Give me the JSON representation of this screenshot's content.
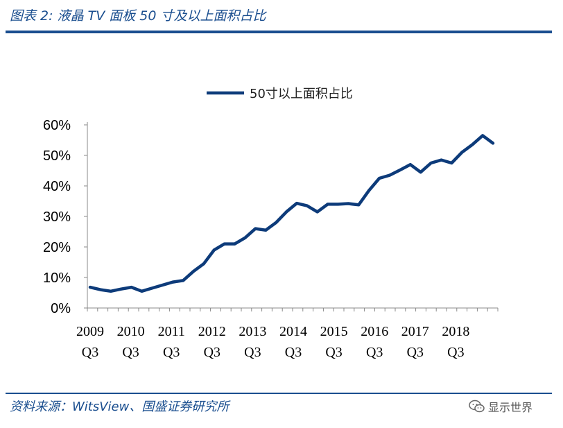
{
  "header": {
    "title": "图表 2: 液晶 TV 面板 50 寸及以上面积占比"
  },
  "footer": {
    "source": "资料来源：WitsView、国盛证券研究所"
  },
  "watermark": {
    "text": "显示世界",
    "icon": "wechat-icon"
  },
  "colors": {
    "brand": "#1a4e8f",
    "series": "#0d3b7a"
  },
  "chart_data": {
    "type": "line",
    "title": "",
    "xlabel": "",
    "ylabel": "",
    "ylim": [
      0,
      60
    ],
    "yticks": [
      "0%",
      "10%",
      "20%",
      "30%",
      "40%",
      "50%",
      "60%"
    ],
    "xtick_labels": [
      {
        "year": "2009",
        "q": "Q3"
      },
      {
        "year": "2010",
        "q": "Q3"
      },
      {
        "year": "2011",
        "q": "Q3"
      },
      {
        "year": "2012",
        "q": "Q3"
      },
      {
        "year": "2013",
        "q": "Q3"
      },
      {
        "year": "2014",
        "q": "Q3"
      },
      {
        "year": "2015",
        "q": "Q3"
      },
      {
        "year": "2016",
        "q": "Q3"
      },
      {
        "year": "2017",
        "q": "Q3"
      },
      {
        "year": "2018",
        "q": "Q3"
      }
    ],
    "legend_position": "top-center",
    "grid": false,
    "series": [
      {
        "name": "50寸以上面积占比",
        "values": [
          6.8,
          6.0,
          5.5,
          6.2,
          6.8,
          5.5,
          6.5,
          7.5,
          8.5,
          9.0,
          12.0,
          14.5,
          19.0,
          21.0,
          21.0,
          23.0,
          26.0,
          25.5,
          28.0,
          31.5,
          34.3,
          33.5,
          31.5,
          34.0,
          34.0,
          34.2,
          33.8,
          38.5,
          42.5,
          43.5,
          45.2,
          47.0,
          44.5,
          47.5,
          48.5,
          47.5,
          51.0,
          53.5,
          56.5,
          54.0
        ]
      }
    ]
  }
}
